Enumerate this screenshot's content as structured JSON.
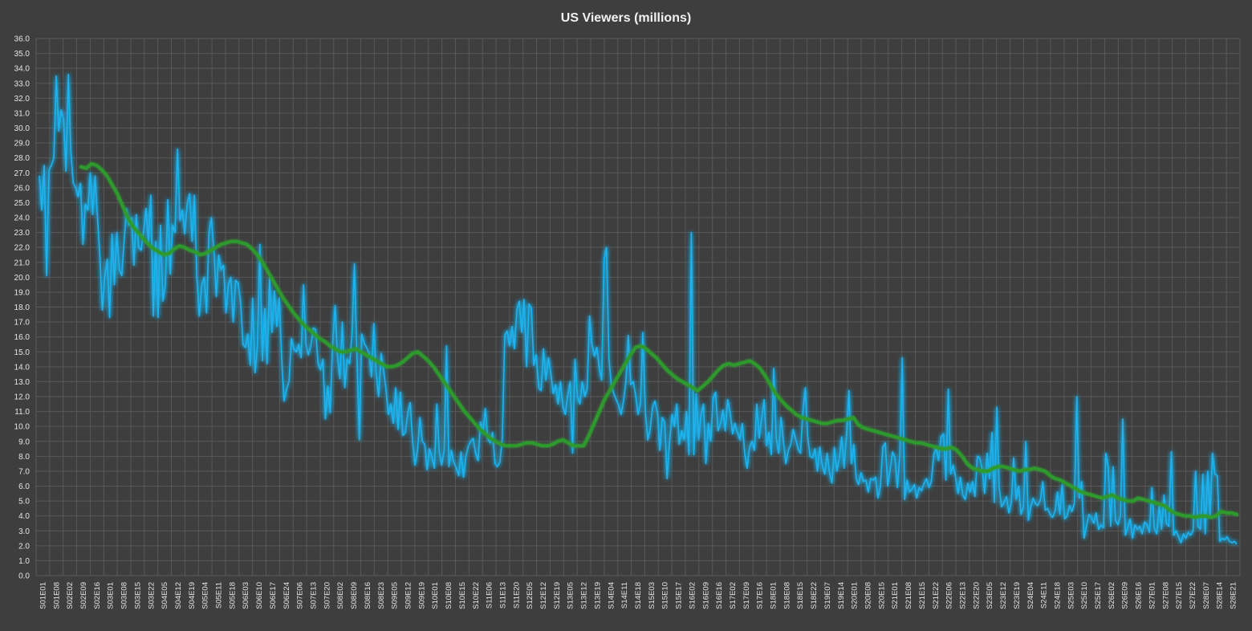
{
  "chart_data": {
    "type": "line",
    "title": "US Viewers (millions)",
    "xlabel": "",
    "ylabel": "",
    "ylim": [
      0,
      36
    ],
    "y_tick_step": 1,
    "grid": true,
    "legend": "none",
    "x_tick_labels": [
      "S01E01",
      "S01E08",
      "S02E02",
      "S02E09",
      "S02E16",
      "S03E01",
      "S03E08",
      "S03E15",
      "S03E22",
      "S04E05",
      "S04E12",
      "S04E19",
      "S05E04",
      "S05E11",
      "S05E18",
      "S06E03",
      "S06E10",
      "S06E17",
      "S06E24",
      "S07E06",
      "S07E13",
      "S07E20",
      "S08E02",
      "S08E09",
      "S08E16",
      "S08E23",
      "S09E05",
      "S09E12",
      "S09E19",
      "S10E01",
      "S10E08",
      "S10E15",
      "S10E22",
      "S11E06",
      "S11E13",
      "S11E20",
      "S12E05",
      "S12E12",
      "S12E19",
      "S13E05",
      "S13E12",
      "S13E19",
      "S14E04",
      "S14E11",
      "S14E18",
      "S15E03",
      "S15E10",
      "S15E17",
      "S16E02",
      "S16E09",
      "S16E16",
      "S17E02",
      "S17E09",
      "S17E16",
      "S18E01",
      "S18E08",
      "S18E15",
      "S18E22",
      "S19E07",
      "S19E14",
      "S20E01",
      "S20E08",
      "S20E15",
      "S21E01",
      "S21E08",
      "S21E15",
      "S21E22",
      "S22E06",
      "S22E13",
      "S22E20",
      "S23E05",
      "S23E12",
      "S23E19",
      "S24E04",
      "S24E11",
      "S24E18",
      "S25E03",
      "S25E10",
      "S25E17",
      "S26E02",
      "S26E09",
      "S26E16",
      "S27E01",
      "S27E08",
      "S27E15",
      "S27E22",
      "S28E07",
      "S28E14",
      "S28E21"
    ],
    "series": [
      {
        "color": "#1fb4f0",
        "values": [
          26.8,
          24.5,
          27.5,
          20.1,
          27.2,
          27.5,
          28.0,
          33.5,
          29.8,
          31.2,
          30.6,
          27.1,
          33.6,
          28.4,
          26.3,
          26.0,
          25.4,
          26.3,
          22.2,
          24.9,
          24.5,
          27.0,
          24.2,
          26.8,
          24.0,
          21.3,
          17.8,
          20.0,
          21.2,
          17.3,
          22.9,
          19.5,
          23.0,
          20.5,
          20.1,
          22.5,
          24.6,
          23.5,
          24.0,
          20.8,
          24.2,
          22.0,
          21.8,
          23.1,
          24.6,
          22.3,
          25.5,
          17.4,
          22.4,
          17.3,
          23.5,
          18.4,
          19.5,
          25.2,
          20.2,
          23.5,
          23.0,
          28.6,
          23.8,
          24.5,
          22.9,
          24.9,
          25.6,
          22.4,
          25.5,
          20.0,
          17.4,
          19.5,
          20.0,
          17.6,
          23.0,
          24.0,
          21.8,
          18.7,
          21.5,
          20.5,
          20.8,
          17.6,
          19.5,
          20.0,
          17.0,
          19.8,
          19.6,
          18.4,
          15.5,
          15.3,
          16.2,
          14.1,
          18.6,
          13.6,
          15.4,
          22.2,
          14.4,
          17.9,
          14.2,
          20.0,
          16.3,
          19.1,
          16.7,
          18.6,
          14.5,
          11.7,
          12.5,
          13.0,
          15.9,
          15.2,
          15.0,
          15.5,
          14.6,
          19.5,
          15.5,
          14.8,
          15.4,
          16.6,
          16.5,
          14.2,
          13.8,
          14.5,
          10.5,
          12.7,
          10.9,
          15.5,
          18.1,
          14.7,
          13.2,
          17.0,
          12.6,
          14.5,
          14.2,
          16.2,
          20.9,
          14.8,
          9.1,
          16.2,
          15.6,
          15.3,
          14.9,
          13.3,
          16.9,
          13.5,
          12.0,
          14.9,
          13.8,
          12.5,
          10.8,
          11.5,
          10.2,
          12.6,
          9.8,
          12.3,
          9.4,
          9.6,
          10.9,
          11.6,
          9.0,
          7.4,
          8.4,
          10.6,
          9.0,
          8.8,
          7.1,
          8.5,
          7.9,
          7.2,
          11.5,
          8.3,
          7.4,
          8.4,
          15.4,
          7.3,
          8.4,
          7.6,
          7.2,
          6.7,
          8.3,
          6.6,
          8.0,
          8.7,
          9.0,
          9.2,
          8.2,
          7.7,
          10.3,
          9.6,
          11.2,
          9.2,
          8.9,
          9.6,
          7.5,
          7.3,
          7.6,
          9.2,
          16.1,
          16.4,
          15.4,
          16.7,
          15.2,
          17.8,
          18.4,
          16.3,
          18.5,
          14.0,
          18.2,
          17.9,
          14.1,
          14.8,
          12.6,
          12.4,
          15.2,
          13.1,
          14.6,
          13.6,
          12.2,
          12.8,
          11.5,
          13.0,
          11.3,
          10.8,
          12.1,
          13.0,
          8.2,
          14.5,
          12.0,
          11.5,
          13.0,
          12.0,
          12.5,
          17.4,
          15.5,
          14.7,
          15.3,
          13.9,
          13.1,
          21.2,
          22.0,
          14.5,
          12.7,
          12.2,
          11.8,
          11.4,
          10.8,
          11.7,
          13.0,
          16.1,
          12.8,
          13.0,
          12.1,
          10.8,
          11.5,
          16.3,
          11.0,
          9.1,
          9.8,
          11.3,
          11.7,
          10.9,
          8.4,
          10.6,
          10.3,
          6.5,
          9.0,
          10.8,
          10.0,
          11.5,
          8.8,
          9.7,
          9.1,
          11.0,
          8.1,
          23.0,
          8.1,
          12.2,
          9.1,
          10.8,
          11.5,
          7.5,
          10.2,
          9.0,
          11.9,
          12.3,
          9.7,
          10.2,
          11.1,
          9.7,
          11.8,
          10.9,
          9.5,
          10.2,
          9.6,
          9.1,
          10.2,
          8.2,
          7.2,
          8.6,
          9.0,
          8.4,
          11.5,
          9.2,
          10.5,
          11.8,
          8.7,
          9.6,
          8.1,
          13.9,
          9.2,
          8.2,
          10.6,
          9.0,
          7.5,
          8.4,
          8.8,
          9.8,
          9.2,
          8.5,
          8.2,
          11.0,
          12.6,
          9.3,
          8.0,
          7.9,
          8.5,
          7.0,
          8.6,
          7.4,
          6.8,
          8.2,
          6.9,
          6.2,
          8.6,
          7.0,
          7.8,
          9.3,
          7.2,
          9.4,
          12.4,
          7.5,
          8.8,
          6.5,
          6.1,
          6.9,
          6.3,
          6.4,
          5.6,
          6.5,
          6.4,
          6.6,
          5.2,
          6.0,
          8.6,
          8.9,
          6.0,
          7.1,
          8.3,
          7.9,
          5.9,
          8.1,
          14.6,
          5.1,
          6.4,
          5.6,
          5.8,
          6.1,
          5.2,
          5.9,
          5.7,
          6.2,
          6.5,
          5.9,
          6.3,
          8.1,
          8.6,
          7.7,
          9.3,
          9.5,
          6.4,
          12.5,
          6.8,
          7.4,
          6.6,
          5.5,
          6.6,
          5.4,
          5.1,
          6.2,
          5.6,
          6.3,
          5.3,
          8.0,
          7.9,
          7.1,
          5.5,
          8.2,
          6.5,
          9.6,
          4.9,
          11.3,
          5.9,
          4.6,
          4.9,
          5.3,
          4.2,
          4.9,
          7.9,
          5.1,
          6.0,
          4.1,
          4.6,
          9.0,
          3.7,
          4.6,
          5.2,
          4.8,
          4.7,
          5.1,
          6.3,
          4.4,
          4.5,
          4.1,
          3.9,
          4.3,
          5.6,
          4.1,
          6.1,
          3.8,
          4.0,
          4.7,
          4.3,
          4.8,
          12.0,
          5.2,
          6.3,
          2.5,
          3.3,
          4.1,
          3.9,
          3.5,
          4.2,
          3.1,
          3.4,
          3.2,
          8.2,
          7.3,
          3.3,
          7.3,
          3.7,
          3.4,
          4.0,
          10.5,
          2.7,
          3.2,
          3.8,
          2.5,
          3.4,
          3.1,
          3.3,
          2.8,
          3.6,
          3.4,
          2.9,
          5.9,
          3.2,
          2.8,
          4.7,
          3.1,
          5.4,
          3.5,
          3.3,
          8.3,
          2.7,
          3.0,
          2.6,
          2.2,
          2.8,
          2.5,
          2.9,
          2.7,
          3.0,
          7.0,
          3.3,
          3.1,
          6.8,
          2.8,
          7.0,
          4.0,
          8.2,
          6.8,
          6.7,
          2.3,
          2.5,
          2.4,
          2.6,
          2.3,
          2.2,
          2.3,
          2.1
        ]
      },
      {
        "color": "#2e9a2e",
        "values": [
          27.4,
          27.3,
          27.6,
          27.5,
          27.2,
          26.8,
          26.2,
          25.6,
          24.8,
          24.0,
          23.4,
          23.0,
          22.6,
          22.2,
          21.9,
          21.7,
          21.5,
          21.6,
          21.9,
          22.1,
          22.0,
          21.8,
          21.7,
          21.5,
          21.6,
          21.8,
          22.0,
          22.2,
          22.3,
          22.4,
          22.4,
          22.3,
          22.2,
          21.9,
          21.5,
          21.0,
          20.4,
          19.8,
          19.2,
          18.6,
          18.1,
          17.6,
          17.2,
          16.8,
          16.5,
          16.2,
          15.9,
          15.7,
          15.4,
          15.2,
          15.0,
          15.0,
          15.1,
          15.2,
          15.0,
          14.8,
          14.6,
          14.4,
          14.2,
          14.0,
          14.0,
          14.1,
          14.3,
          14.6,
          14.9,
          15.0,
          14.7,
          14.4,
          14.0,
          13.5,
          13.0,
          12.5,
          12.0,
          11.5,
          11.0,
          10.6,
          10.2,
          9.8,
          9.5,
          9.2,
          9.0,
          8.8,
          8.7,
          8.7,
          8.7,
          8.8,
          8.9,
          8.9,
          8.8,
          8.7,
          8.7,
          8.8,
          9.0,
          9.1,
          8.9,
          8.7,
          8.7,
          8.7,
          9.4,
          10.2,
          11.0,
          11.8,
          12.4,
          13.0,
          13.6,
          14.2,
          14.8,
          15.3,
          15.4,
          15.2,
          14.9,
          14.6,
          14.2,
          13.8,
          13.5,
          13.2,
          13.0,
          12.8,
          12.6,
          12.4,
          12.7,
          13.0,
          13.4,
          13.8,
          14.1,
          14.2,
          14.1,
          14.2,
          14.3,
          14.4,
          14.2,
          13.9,
          13.4,
          12.8,
          12.2,
          11.8,
          11.4,
          11.1,
          10.8,
          10.6,
          10.5,
          10.4,
          10.3,
          10.2,
          10.2,
          10.3,
          10.4,
          10.4,
          10.5,
          10.6,
          10.1,
          9.9,
          9.8,
          9.7,
          9.6,
          9.5,
          9.4,
          9.3,
          9.2,
          9.1,
          9.0,
          8.9,
          8.9,
          8.8,
          8.7,
          8.6,
          8.5,
          8.5,
          8.6,
          8.4,
          8.0,
          7.5,
          7.2,
          7.1,
          7.0,
          7.0,
          7.2,
          7.3,
          7.3,
          7.2,
          7.1,
          7.0,
          7.1,
          7.1,
          7.2,
          7.1,
          7.0,
          6.7,
          6.5,
          6.4,
          6.2,
          6.0,
          5.8,
          5.6,
          5.5,
          5.4,
          5.3,
          5.2,
          5.3,
          5.4,
          5.2,
          5.1,
          5.0,
          5.0,
          5.2,
          5.1,
          5.0,
          4.9,
          4.8,
          4.7,
          4.4,
          4.2,
          4.1,
          4.0,
          4.0,
          3.9,
          4.0,
          4.0,
          3.9,
          4.0,
          4.3,
          4.2,
          4.2,
          4.1
        ]
      }
    ]
  }
}
